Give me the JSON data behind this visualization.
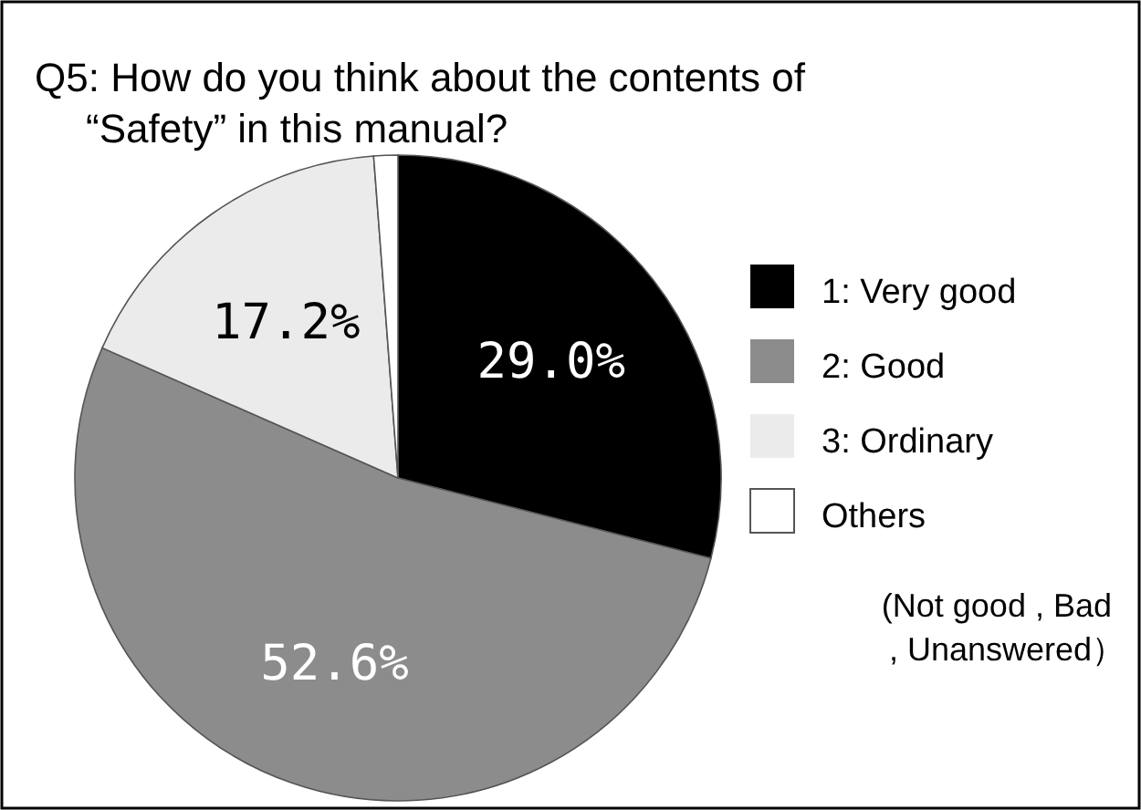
{
  "chart_data": {
    "type": "pie",
    "title": "Q5: How do you think about the contents of “Safety” in this manual?",
    "categories": [
      "1: Very good",
      "2: Good",
      "3: Ordinary",
      "Others"
    ],
    "values": [
      29.0,
      52.6,
      17.2,
      1.2
    ],
    "colors": [
      "#000000",
      "#8c8c8c",
      "#ebebeb",
      "#ffffff"
    ],
    "value_labels": [
      "29.0%",
      "52.6%",
      "17.2%",
      null
    ],
    "legend": "right",
    "annotations": [
      "(Not good , Bad , Unanswered）"
    ]
  }
}
